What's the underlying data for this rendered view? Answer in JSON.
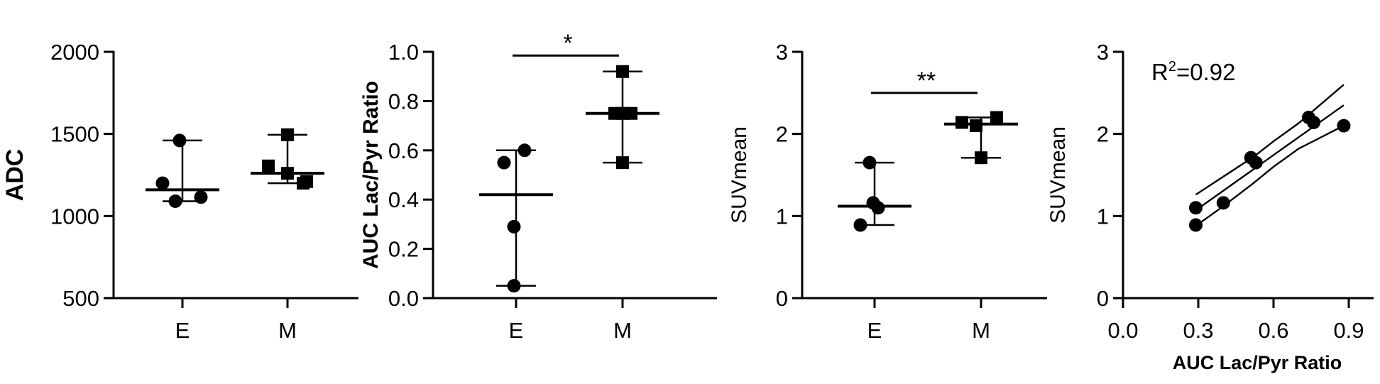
{
  "chart_data": [
    {
      "type": "scatter",
      "subtype": "dot-plot-with-error-bars",
      "title": "",
      "ylabel": "ADC",
      "ylabel_bold": true,
      "ylim": [
        500,
        2000
      ],
      "yticks": [
        500,
        1000,
        1500,
        2000
      ],
      "categories": [
        "E",
        "M"
      ],
      "series": [
        {
          "category": "E",
          "marker": "circle",
          "values": [
            1460,
            1200,
            1090,
            1115
          ],
          "center": 1160,
          "lower": 1090,
          "upper": 1460
        },
        {
          "category": "M",
          "marker": "square",
          "values": [
            1495,
            1305,
            1260,
            1200,
            1210
          ],
          "center": 1260,
          "lower": 1200,
          "upper": 1495
        }
      ],
      "significance": []
    },
    {
      "type": "scatter",
      "subtype": "dot-plot-with-error-bars",
      "title": "",
      "ylabel": "AUC Lac/Pyr Ratio",
      "ylabel_bold": true,
      "ylim": [
        0.0,
        1.0
      ],
      "yticks": [
        0.0,
        0.2,
        0.4,
        0.6,
        0.8,
        1.0
      ],
      "categories": [
        "E",
        "M"
      ],
      "series": [
        {
          "category": "E",
          "marker": "circle",
          "values": [
            0.6,
            0.55,
            0.29,
            0.05
          ],
          "center": 0.42,
          "lower": 0.05,
          "upper": 0.6
        },
        {
          "category": "M",
          "marker": "square",
          "values": [
            0.92,
            0.75,
            0.75,
            0.75,
            0.55
          ],
          "center": 0.75,
          "lower": 0.55,
          "upper": 0.92
        }
      ],
      "significance": [
        {
          "from": "E",
          "to": "M",
          "y": 0.985,
          "label": "*"
        }
      ]
    },
    {
      "type": "scatter",
      "subtype": "dot-plot-with-error-bars",
      "title": "",
      "ylabel": "SUVmean",
      "ylabel_bold": false,
      "ylim": [
        0,
        3
      ],
      "yticks": [
        0,
        1,
        2,
        3
      ],
      "categories": [
        "E",
        "M"
      ],
      "series": [
        {
          "category": "E",
          "marker": "circle",
          "values": [
            1.65,
            1.16,
            1.1,
            0.89
          ],
          "center": 1.12,
          "lower": 0.89,
          "upper": 1.65
        },
        {
          "category": "M",
          "marker": "square",
          "values": [
            2.14,
            2.1,
            2.2,
            1.71
          ],
          "center": 2.12,
          "lower": 1.71,
          "upper": 2.2
        }
      ],
      "significance": [
        {
          "from": "E",
          "to": "M",
          "y": 2.5,
          "label": "**"
        }
      ]
    },
    {
      "type": "scatter",
      "subtype": "regression-with-confidence-band",
      "title": "",
      "xlabel": "AUC Lac/Pyr Ratio",
      "xlabel_bold": true,
      "ylabel": "SUVmean",
      "ylabel_bold": false,
      "xlim": [
        0.0,
        0.9
      ],
      "xticks": [
        0.0,
        0.3,
        0.6,
        0.9
      ],
      "ylim": [
        0,
        3
      ],
      "yticks": [
        0,
        1,
        2,
        3
      ],
      "points": [
        {
          "x": 0.29,
          "y": 0.89
        },
        {
          "x": 0.29,
          "y": 1.1
        },
        {
          "x": 0.4,
          "y": 1.16
        },
        {
          "x": 0.51,
          "y": 1.71
        },
        {
          "x": 0.53,
          "y": 1.65
        },
        {
          "x": 0.74,
          "y": 2.2
        },
        {
          "x": 0.76,
          "y": 2.14
        },
        {
          "x": 0.88,
          "y": 2.1
        }
      ],
      "fit": {
        "x": [
          0.29,
          0.88
        ],
        "y": [
          1.07,
          2.35
        ]
      },
      "band_upper": {
        "x": [
          0.29,
          0.4,
          0.52,
          0.6,
          0.7,
          0.88
        ],
        "y": [
          1.26,
          1.48,
          1.72,
          1.91,
          2.13,
          2.6
        ]
      },
      "band_lower": {
        "x": [
          0.29,
          0.4,
          0.52,
          0.6,
          0.7,
          0.88
        ],
        "y": [
          0.88,
          1.12,
          1.4,
          1.6,
          1.82,
          2.1
        ]
      },
      "annotation": {
        "base": "R",
        "superscript": "2",
        "value": "=0.92"
      }
    }
  ]
}
